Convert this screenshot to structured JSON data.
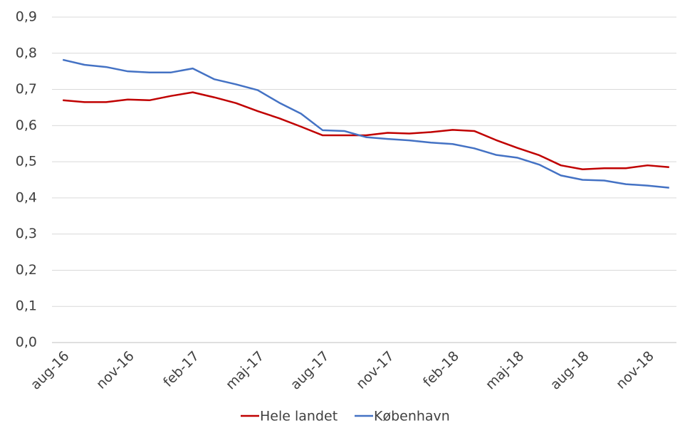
{
  "chart_data": {
    "type": "line",
    "categories": [
      "aug-16",
      null,
      null,
      "nov-16",
      null,
      null,
      "feb-17",
      null,
      null,
      "maj-17",
      null,
      null,
      "aug-17",
      null,
      null,
      "nov-17",
      null,
      null,
      "feb-18",
      null,
      null,
      "maj-18",
      null,
      null,
      "aug-18",
      null,
      null,
      "nov-18",
      null
    ],
    "series": [
      {
        "name": "Hele landet",
        "color": "#c00000",
        "values": [
          0.67,
          0.665,
          0.665,
          0.672,
          0.67,
          0.682,
          0.692,
          0.678,
          0.662,
          0.64,
          0.62,
          0.597,
          0.573,
          0.573,
          0.573,
          0.58,
          0.578,
          0.582,
          0.588,
          0.585,
          0.56,
          0.538,
          0.518,
          0.49,
          0.479,
          0.482,
          0.482,
          0.49,
          0.485
        ]
      },
      {
        "name": "København",
        "color": "#4472c4",
        "values": [
          0.782,
          0.768,
          0.762,
          0.75,
          0.747,
          0.747,
          0.758,
          0.728,
          0.714,
          0.698,
          0.663,
          0.633,
          0.587,
          0.585,
          0.568,
          0.563,
          0.559,
          0.553,
          0.549,
          0.537,
          0.519,
          0.511,
          0.492,
          0.462,
          0.45,
          0.448,
          0.438,
          0.434,
          0.428
        ]
      }
    ],
    "ylim": [
      0,
      0.9
    ],
    "yticks": [
      {
        "value": 0,
        "label": "0,0"
      },
      {
        "value": 0.1,
        "label": "0,1"
      },
      {
        "value": 0.2,
        "label": "0,2"
      },
      {
        "value": 0.3,
        "label": "0,3"
      },
      {
        "value": 0.4,
        "label": "0,4"
      },
      {
        "value": 0.5,
        "label": "0,5"
      },
      {
        "value": 0.6,
        "label": "0,6"
      },
      {
        "value": 0.7,
        "label": "0,7"
      },
      {
        "value": 0.8,
        "label": "0,8"
      },
      {
        "value": 0.9,
        "label": "0,9"
      }
    ],
    "grid": true,
    "legend": "bottom"
  }
}
